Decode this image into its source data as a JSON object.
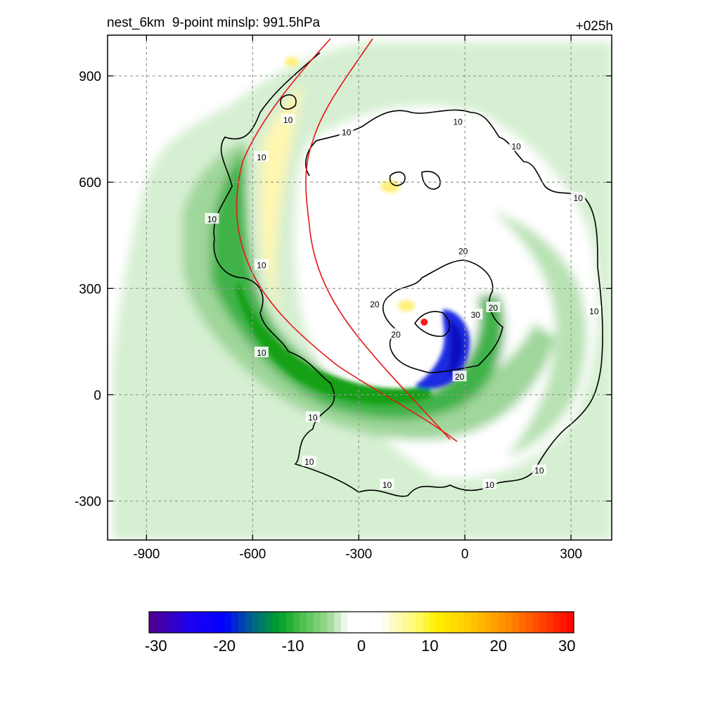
{
  "chart_data": {
    "type": "heatmap",
    "title_left": "nest_6km  9-point minslp: 991.5hPa",
    "title_right": "+025h",
    "xlabel": "",
    "ylabel": "",
    "x_ticks": [
      -900,
      -600,
      -300,
      0,
      300
    ],
    "y_ticks": [
      900,
      600,
      300,
      0,
      -300
    ],
    "xlim": [
      -1010,
      415
    ],
    "ylim": [
      -410,
      1015
    ],
    "grid": true,
    "colorbar": {
      "ticks": [
        -30,
        -20,
        -10,
        0,
        10,
        20,
        30
      ],
      "range": [
        -31,
        31
      ],
      "bins": 62
    },
    "contour_labels": [
      {
        "text": "10",
        "x": -500,
        "y": 775
      },
      {
        "text": "10",
        "x": -335,
        "y": 740
      },
      {
        "text": "10",
        "x": -575,
        "y": 670
      },
      {
        "text": "10",
        "x": -715,
        "y": 495
      },
      {
        "text": "10",
        "x": -575,
        "y": 365
      },
      {
        "text": "10",
        "x": -575,
        "y": 118
      },
      {
        "text": "10",
        "x": -430,
        "y": -65
      },
      {
        "text": "10",
        "x": -440,
        "y": -190
      },
      {
        "text": "10",
        "x": -220,
        "y": -255
      },
      {
        "text": "10",
        "x": -20,
        "y": 770
      },
      {
        "text": "10",
        "x": 145,
        "y": 700
      },
      {
        "text": "10",
        "x": 320,
        "y": 555
      },
      {
        "text": "10",
        "x": 365,
        "y": 235
      },
      {
        "text": "10",
        "x": 210,
        "y": -215
      },
      {
        "text": "10",
        "x": 70,
        "y": -255
      },
      {
        "text": "20",
        "x": -255,
        "y": 255
      },
      {
        "text": "20",
        "x": -195,
        "y": 170
      },
      {
        "text": "20",
        "x": -5,
        "y": 405
      },
      {
        "text": "30",
        "x": 30,
        "y": 225
      },
      {
        "text": "20",
        "x": 80,
        "y": 245
      },
      {
        "text": "20",
        "x": -15,
        "y": 50
      }
    ],
    "min_pressure_center": {
      "x": -115,
      "y": 205
    }
  }
}
